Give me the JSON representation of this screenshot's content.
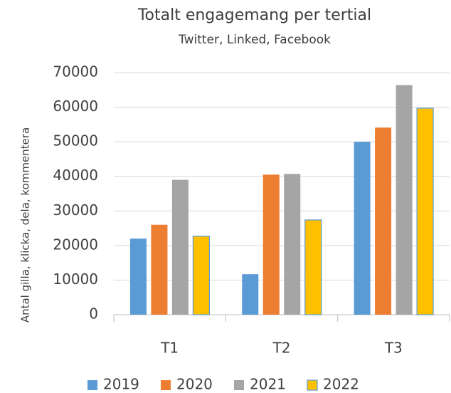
{
  "chart_data": {
    "type": "bar",
    "title": "Totalt engagemang per tertial",
    "subtitle": "Twitter, Linked, Facebook",
    "y_label": "Antal gilla, klicka, dela, kommentera",
    "categories": [
      "T1",
      "T2",
      "T3"
    ],
    "series": [
      {
        "name": "2019",
        "color": "#5b9bd5",
        "values": [
          22000,
          11700,
          50000
        ]
      },
      {
        "name": "2020",
        "color": "#ed7d31",
        "values": [
          26000,
          40500,
          54100
        ]
      },
      {
        "name": "2021",
        "color": "#a5a5a5",
        "values": [
          39000,
          40700,
          66400
        ]
      },
      {
        "name": "2022",
        "color": "#ffc000",
        "edgecolor": "#5b9bd5",
        "values": [
          22700,
          27400,
          59700
        ]
      }
    ],
    "ylim": [
      0,
      70000
    ],
    "yticks": [
      0,
      10000,
      20000,
      30000,
      40000,
      50000,
      60000,
      70000
    ],
    "grid": true,
    "legend": "bottom"
  }
}
